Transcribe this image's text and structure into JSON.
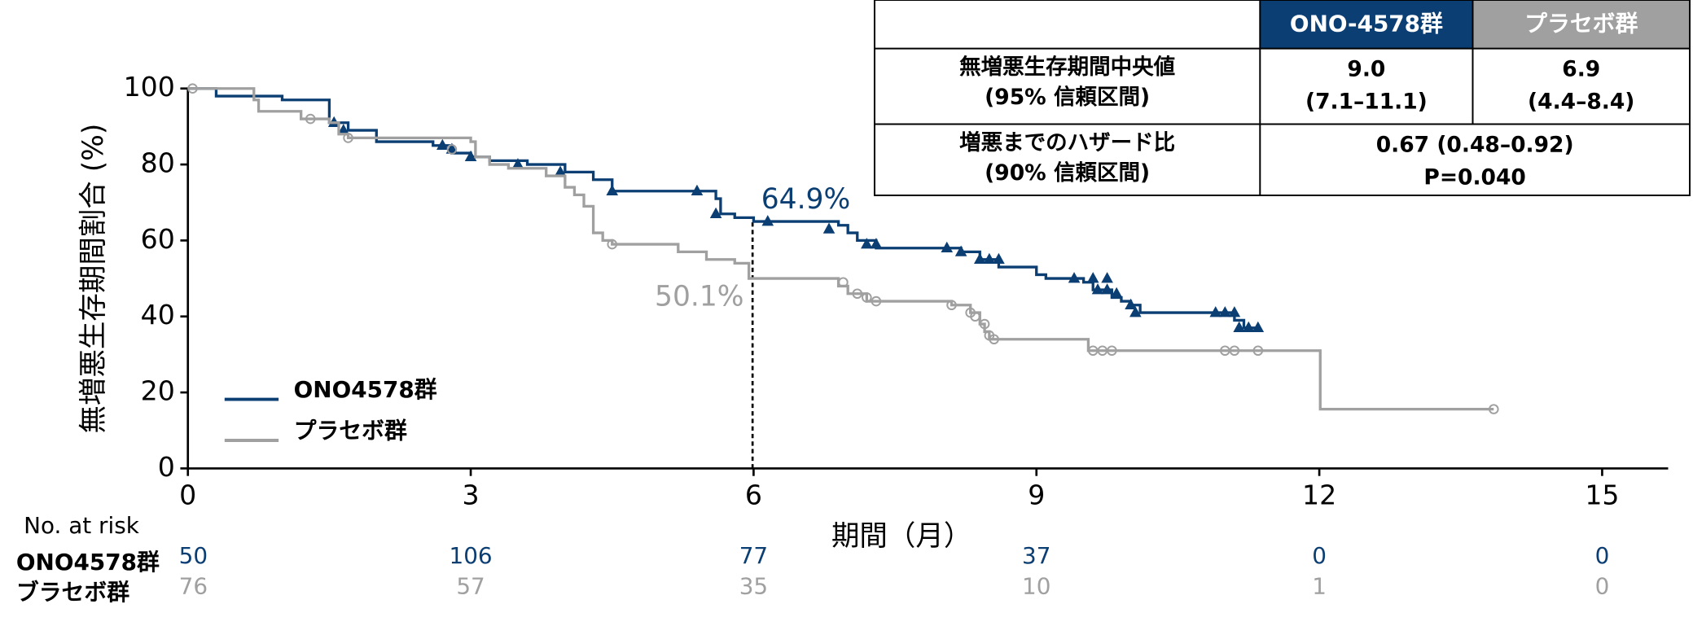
{
  "chart_data": {
    "type": "line",
    "ylabel": "無増悪生存期間割合 (%)",
    "xlabel": "期間（月）",
    "xlim": [
      0,
      15.7
    ],
    "ylim": [
      0,
      100
    ],
    "xticks": [
      0,
      3,
      6,
      9,
      12,
      15
    ],
    "yticks": [
      0,
      20,
      40,
      60,
      80,
      100
    ],
    "legend": "lower left",
    "series": [
      {
        "name": "ONO4578群",
        "color": "#0b3e73",
        "marker": "triangle",
        "x": [
          0,
          0.3,
          1.0,
          1.5,
          1.7,
          2.0,
          2.6,
          2.8,
          3.0,
          3.2,
          3.6,
          4.0,
          4.3,
          4.5,
          5.5,
          5.6,
          5.65,
          5.8,
          6.0,
          6.9,
          7.0,
          7.1,
          7.3,
          8.1,
          8.2,
          8.4,
          8.6,
          9.0,
          9.1,
          9.5,
          9.6,
          9.8,
          9.9,
          10.0,
          10.1,
          11.0,
          11.1,
          11.2,
          11.35
        ],
        "y": [
          100,
          98,
          97,
          91,
          89,
          86,
          85,
          83,
          82,
          81,
          80,
          78,
          76,
          73,
          73,
          71,
          67,
          66,
          65,
          64,
          62,
          60,
          58,
          58,
          57,
          55,
          53,
          51,
          50,
          49,
          47,
          45,
          44,
          43,
          41,
          41,
          39,
          37,
          37
        ],
        "censor_x": [
          1.55,
          1.65,
          2.7,
          2.8,
          3.0,
          3.5,
          3.95,
          4.5,
          5.4,
          5.6,
          6.15,
          6.8,
          7.2,
          7.3,
          8.05,
          8.2,
          8.4,
          8.5,
          8.6,
          9.4,
          9.6,
          9.75,
          9.65,
          9.75,
          9.85,
          10.0,
          10.05,
          10.9,
          11.0,
          11.1,
          11.15,
          11.25,
          11.35
        ],
        "censor_y": [
          91,
          89,
          85,
          84,
          82,
          80,
          78,
          73,
          73,
          67,
          65,
          63,
          59,
          59,
          58,
          57,
          55,
          55,
          55,
          50,
          50,
          50,
          47,
          47,
          46,
          43,
          41,
          41,
          41,
          41,
          37,
          37,
          37
        ]
      },
      {
        "name": "プラセボ群",
        "color": "#a0a0a0",
        "marker": "circle",
        "x": [
          0,
          0.7,
          0.75,
          1.2,
          1.5,
          1.6,
          1.7,
          3.0,
          3.05,
          3.2,
          3.4,
          3.8,
          4.0,
          4.1,
          4.2,
          4.3,
          4.4,
          4.5,
          5.2,
          5.5,
          5.8,
          5.95,
          6.9,
          7.0,
          7.2,
          8.1,
          8.3,
          8.4,
          8.45,
          8.5,
          9.5,
          9.55,
          12.0,
          12.01,
          13.85
        ],
        "y": [
          100,
          97,
          94,
          92,
          91,
          88,
          87,
          86,
          82,
          80,
          79,
          77,
          74,
          72,
          69,
          62,
          60,
          59,
          57,
          55,
          54,
          50,
          48,
          46,
          44,
          43,
          41,
          38,
          36,
          34,
          34,
          31,
          31,
          15.6,
          15.6
        ],
        "censor_x": [
          0.05,
          1.3,
          1.7,
          2.8,
          4.5,
          6.95,
          7.1,
          7.2,
          7.3,
          8.1,
          8.3,
          8.35,
          8.45,
          8.5,
          8.55,
          9.6,
          9.7,
          9.8,
          11.0,
          11.1,
          11.35,
          13.85
        ],
        "censor_y": [
          100,
          92,
          87,
          84,
          59,
          49,
          46,
          45,
          44,
          43,
          41,
          40,
          38,
          35,
          34,
          31,
          31,
          31,
          31,
          31,
          31,
          15.6
        ]
      }
    ],
    "annotations": [
      "64.9%",
      "50.1%"
    ],
    "risk_table": {
      "title": "No. at risk",
      "rows": [
        {
          "name": "ONO4578群",
          "values": [
            50,
            106,
            77,
            37,
            0,
            0
          ]
        },
        {
          "name": "ブラセボ群",
          "values": [
            76,
            57,
            35,
            10,
            1,
            0
          ]
        }
      ]
    }
  },
  "table": {
    "header": [
      "ONO-4578群",
      "プラセボ群"
    ],
    "rows": [
      {
        "label": [
          "無増悪生存期間中央値",
          "(95% 信頼区間)"
        ],
        "cells": [
          [
            "9.0",
            "(7.1–11.1)"
          ],
          [
            "6.9",
            "(4.4–8.4)"
          ]
        ]
      },
      {
        "label": [
          "増悪までのハザード比",
          "(90% 信頼区間)"
        ],
        "cells": [
          [
            "0.67 (0.48–0.92)",
            "P=0.040"
          ]
        ]
      }
    ]
  }
}
